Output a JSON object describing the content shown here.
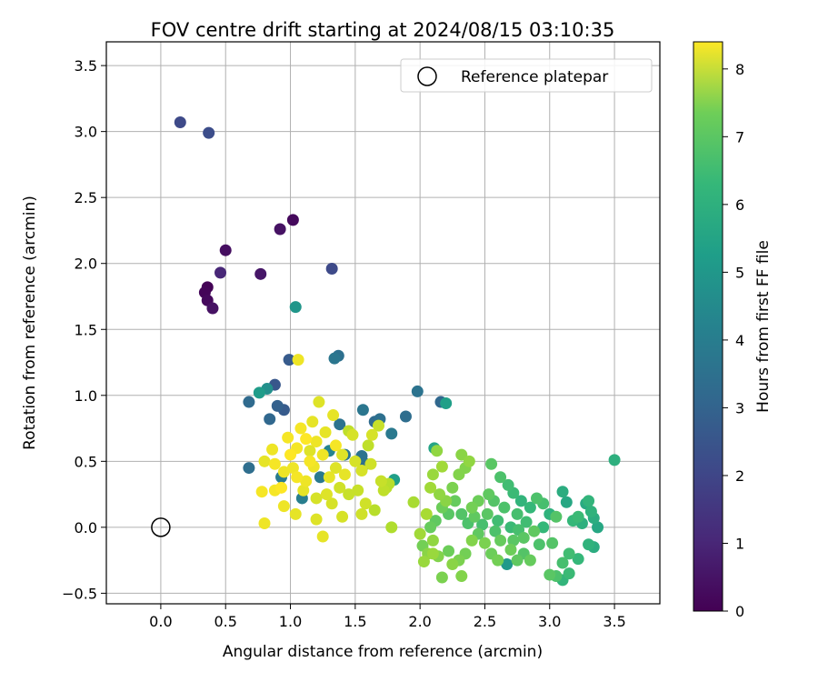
{
  "chart_data": {
    "type": "scatter",
    "title": "FOV centre drift starting at 2024/08/15 03:10:35",
    "xlabel": "Angular distance from reference (arcmin)",
    "ylabel": "Rotation from reference (arcmin)",
    "xlim": [
      -0.42,
      3.85
    ],
    "ylim": [
      -0.58,
      3.68
    ],
    "xticks": [
      "0.0",
      "0.5",
      "1.0",
      "1.5",
      "2.0",
      "2.5",
      "3.0",
      "3.5"
    ],
    "xtick_values": [
      0,
      0.5,
      1.0,
      1.5,
      2.0,
      2.5,
      3.0,
      3.5
    ],
    "yticks": [
      "−0.5",
      "0.0",
      "0.5",
      "1.0",
      "1.5",
      "2.0",
      "2.5",
      "3.0",
      "3.5"
    ],
    "ytick_values": [
      -0.5,
      0,
      0.5,
      1.0,
      1.5,
      2.0,
      2.5,
      3.0,
      3.5
    ],
    "grid": true,
    "legend": {
      "placement": "top-right",
      "entries": [
        "Reference platepar"
      ]
    },
    "reference_point": {
      "x": 0.0,
      "y": 0.0,
      "label": "Reference platepar"
    },
    "colorbar": {
      "label": "Hours from first FF file",
      "colormap": "viridis",
      "range": [
        0,
        8.4
      ],
      "ticks": [
        "0",
        "1",
        "2",
        "3",
        "4",
        "5",
        "6",
        "7",
        "8"
      ],
      "tick_values": [
        0,
        1,
        2,
        3,
        4,
        5,
        6,
        7,
        8
      ]
    },
    "series": [
      {
        "color_by": "hours",
        "points": [
          {
            "x": 0.36,
            "y": 1.82,
            "h": 0.05
          },
          {
            "x": 0.34,
            "y": 1.78,
            "h": 0.1
          },
          {
            "x": 0.36,
            "y": 1.72,
            "h": 0.2
          },
          {
            "x": 0.4,
            "y": 1.66,
            "h": 0.4
          },
          {
            "x": 0.5,
            "y": 2.1,
            "h": 0.3
          },
          {
            "x": 0.46,
            "y": 1.93,
            "h": 0.9
          },
          {
            "x": 0.77,
            "y": 1.92,
            "h": 0.5
          },
          {
            "x": 0.92,
            "y": 2.26,
            "h": 0.4
          },
          {
            "x": 1.02,
            "y": 2.33,
            "h": 0.2
          },
          {
            "x": 0.15,
            "y": 3.07,
            "h": 1.9
          },
          {
            "x": 0.37,
            "y": 2.99,
            "h": 2.0
          },
          {
            "x": 1.32,
            "y": 1.96,
            "h": 1.9
          },
          {
            "x": 0.99,
            "y": 1.27,
            "h": 2.4
          },
          {
            "x": 0.88,
            "y": 1.08,
            "h": 2.3
          },
          {
            "x": 0.9,
            "y": 0.92,
            "h": 2.6
          },
          {
            "x": 0.95,
            "y": 0.89,
            "h": 2.4
          },
          {
            "x": 0.84,
            "y": 0.82,
            "h": 2.8
          },
          {
            "x": 0.68,
            "y": 0.95,
            "h": 2.9
          },
          {
            "x": 0.68,
            "y": 0.45,
            "h": 3.0
          },
          {
            "x": 1.34,
            "y": 1.28,
            "h": 3.3
          },
          {
            "x": 1.37,
            "y": 1.3,
            "h": 3.1
          },
          {
            "x": 1.04,
            "y": 1.67,
            "h": 4.4
          },
          {
            "x": 0.76,
            "y": 1.02,
            "h": 4.6
          },
          {
            "x": 0.82,
            "y": 1.05,
            "h": 4.2
          },
          {
            "x": 1.09,
            "y": 0.22,
            "h": 3.6
          },
          {
            "x": 1.23,
            "y": 0.38,
            "h": 3.4
          },
          {
            "x": 1.38,
            "y": 0.78,
            "h": 3.2
          },
          {
            "x": 1.42,
            "y": 0.55,
            "h": 3.3
          },
          {
            "x": 1.55,
            "y": 0.54,
            "h": 3.2
          },
          {
            "x": 1.56,
            "y": 0.89,
            "h": 3.3
          },
          {
            "x": 1.58,
            "y": 0.48,
            "h": 3.0
          },
          {
            "x": 1.65,
            "y": 0.8,
            "h": 2.9
          },
          {
            "x": 1.69,
            "y": 0.82,
            "h": 3.1
          },
          {
            "x": 1.78,
            "y": 0.71,
            "h": 3.4
          },
          {
            "x": 1.89,
            "y": 0.84,
            "h": 3.0
          },
          {
            "x": 1.98,
            "y": 1.03,
            "h": 3.2
          },
          {
            "x": 2.16,
            "y": 0.95,
            "h": 2.8
          },
          {
            "x": 2.2,
            "y": 0.94,
            "h": 4.7
          },
          {
            "x": 2.11,
            "y": 0.6,
            "h": 4.9
          },
          {
            "x": 1.8,
            "y": 0.36,
            "h": 4.7
          },
          {
            "x": 3.5,
            "y": 0.51,
            "h": 5.3
          },
          {
            "x": 2.67,
            "y": -0.28,
            "h": 4.5
          },
          {
            "x": 0.93,
            "y": 0.38,
            "h": 3.5
          },
          {
            "x": 1.3,
            "y": 0.58,
            "h": 3.8
          },
          {
            "x": 2.55,
            "y": 0.48,
            "h": 6.2
          },
          {
            "x": 2.62,
            "y": 0.38,
            "h": 6.0
          },
          {
            "x": 2.68,
            "y": 0.32,
            "h": 5.8
          },
          {
            "x": 2.72,
            "y": 0.26,
            "h": 5.7
          },
          {
            "x": 2.78,
            "y": 0.2,
            "h": 5.5
          },
          {
            "x": 2.85,
            "y": 0.15,
            "h": 5.6
          },
          {
            "x": 2.9,
            "y": 0.22,
            "h": 6.0
          },
          {
            "x": 2.95,
            "y": 0.18,
            "h": 5.9
          },
          {
            "x": 3.0,
            "y": 0.1,
            "h": 5.4
          },
          {
            "x": 3.05,
            "y": 0.08,
            "h": 6.1
          },
          {
            "x": 3.1,
            "y": 0.27,
            "h": 5.2
          },
          {
            "x": 3.13,
            "y": 0.19,
            "h": 5.0
          },
          {
            "x": 3.18,
            "y": 0.05,
            "h": 5.6
          },
          {
            "x": 3.22,
            "y": 0.08,
            "h": 5.7
          },
          {
            "x": 3.25,
            "y": 0.03,
            "h": 5.3
          },
          {
            "x": 3.28,
            "y": 0.18,
            "h": 5.1
          },
          {
            "x": 3.3,
            "y": 0.2,
            "h": 5.5
          },
          {
            "x": 3.32,
            "y": 0.12,
            "h": 5.4
          },
          {
            "x": 3.34,
            "y": 0.07,
            "h": 5.2
          },
          {
            "x": 3.37,
            "y": 0.0,
            "h": 5.0
          },
          {
            "x": 3.3,
            "y": -0.13,
            "h": 5.4
          },
          {
            "x": 3.34,
            "y": -0.15,
            "h": 5.2
          },
          {
            "x": 3.22,
            "y": -0.24,
            "h": 5.6
          },
          {
            "x": 3.15,
            "y": -0.2,
            "h": 5.8
          },
          {
            "x": 3.1,
            "y": -0.27,
            "h": 5.9
          },
          {
            "x": 3.15,
            "y": -0.35,
            "h": 5.7
          },
          {
            "x": 3.1,
            "y": -0.4,
            "h": 5.5
          },
          {
            "x": 3.05,
            "y": -0.37,
            "h": 6.0
          },
          {
            "x": 3.0,
            "y": -0.36,
            "h": 6.2
          },
          {
            "x": 3.02,
            "y": -0.12,
            "h": 6.1
          },
          {
            "x": 2.92,
            "y": -0.13,
            "h": 6.0
          },
          {
            "x": 2.88,
            "y": -0.03,
            "h": 6.3
          },
          {
            "x": 2.82,
            "y": 0.04,
            "h": 5.8
          },
          {
            "x": 2.76,
            "y": -0.02,
            "h": 5.9
          },
          {
            "x": 2.72,
            "y": -0.1,
            "h": 6.2
          },
          {
            "x": 2.8,
            "y": -0.2,
            "h": 6.1
          },
          {
            "x": 2.85,
            "y": -0.25,
            "h": 6.4
          },
          {
            "x": 2.75,
            "y": -0.25,
            "h": 6.3
          },
          {
            "x": 2.7,
            "y": -0.17,
            "h": 6.5
          },
          {
            "x": 2.62,
            "y": -0.1,
            "h": 6.4
          },
          {
            "x": 2.6,
            "y": -0.25,
            "h": 6.6
          },
          {
            "x": 2.55,
            "y": -0.2,
            "h": 6.5
          },
          {
            "x": 2.5,
            "y": -0.12,
            "h": 6.7
          },
          {
            "x": 2.45,
            "y": -0.05,
            "h": 6.3
          },
          {
            "x": 2.4,
            "y": -0.1,
            "h": 6.8
          },
          {
            "x": 2.35,
            "y": -0.2,
            "h": 6.6
          },
          {
            "x": 2.3,
            "y": -0.25,
            "h": 6.7
          },
          {
            "x": 2.32,
            "y": -0.37,
            "h": 6.8
          },
          {
            "x": 2.25,
            "y": -0.28,
            "h": 6.9
          },
          {
            "x": 2.22,
            "y": -0.18,
            "h": 6.5
          },
          {
            "x": 2.17,
            "y": -0.38,
            "h": 6.7
          },
          {
            "x": 2.14,
            "y": -0.22,
            "h": 6.8
          },
          {
            "x": 2.1,
            "y": -0.1,
            "h": 7.0
          },
          {
            "x": 2.06,
            "y": -0.2,
            "h": 6.9
          },
          {
            "x": 2.03,
            "y": -0.26,
            "h": 7.1
          },
          {
            "x": 2.02,
            "y": -0.14,
            "h": 6.6
          },
          {
            "x": 2.08,
            "y": 0.0,
            "h": 6.4
          },
          {
            "x": 2.12,
            "y": 0.05,
            "h": 6.3
          },
          {
            "x": 2.17,
            "y": 0.15,
            "h": 6.5
          },
          {
            "x": 2.22,
            "y": 0.1,
            "h": 6.2
          },
          {
            "x": 2.27,
            "y": 0.2,
            "h": 6.4
          },
          {
            "x": 2.32,
            "y": 0.1,
            "h": 6.1
          },
          {
            "x": 2.37,
            "y": 0.03,
            "h": 6.0
          },
          {
            "x": 2.42,
            "y": 0.08,
            "h": 6.3
          },
          {
            "x": 2.48,
            "y": 0.02,
            "h": 5.9
          },
          {
            "x": 2.52,
            "y": 0.1,
            "h": 6.2
          },
          {
            "x": 2.57,
            "y": 0.2,
            "h": 6.1
          },
          {
            "x": 2.6,
            "y": 0.05,
            "h": 5.8
          },
          {
            "x": 2.65,
            "y": 0.15,
            "h": 6.0
          },
          {
            "x": 2.7,
            "y": 0.0,
            "h": 5.7
          },
          {
            "x": 2.75,
            "y": 0.1,
            "h": 5.9
          },
          {
            "x": 2.8,
            "y": -0.08,
            "h": 6.2
          },
          {
            "x": 2.95,
            "y": 0.0,
            "h": 5.6
          },
          {
            "x": 2.58,
            "y": -0.03,
            "h": 6.0
          },
          {
            "x": 2.53,
            "y": 0.25,
            "h": 6.3
          },
          {
            "x": 2.45,
            "y": 0.2,
            "h": 6.5
          },
          {
            "x": 2.4,
            "y": 0.15,
            "h": 6.6
          },
          {
            "x": 2.35,
            "y": 0.45,
            "h": 6.8
          },
          {
            "x": 2.32,
            "y": 0.55,
            "h": 6.9
          },
          {
            "x": 2.38,
            "y": 0.5,
            "h": 7.0
          },
          {
            "x": 2.3,
            "y": 0.4,
            "h": 6.8
          },
          {
            "x": 2.25,
            "y": 0.3,
            "h": 6.7
          },
          {
            "x": 2.2,
            "y": 0.2,
            "h": 6.9
          },
          {
            "x": 2.15,
            "y": 0.25,
            "h": 7.0
          },
          {
            "x": 2.1,
            "y": 0.4,
            "h": 7.1
          },
          {
            "x": 2.13,
            "y": 0.58,
            "h": 7.0
          },
          {
            "x": 2.17,
            "y": 0.46,
            "h": 7.2
          },
          {
            "x": 2.08,
            "y": 0.3,
            "h": 7.2
          },
          {
            "x": 1.95,
            "y": 0.19,
            "h": 7.3
          },
          {
            "x": 2.05,
            "y": 0.1,
            "h": 7.3
          },
          {
            "x": 2.0,
            "y": -0.05,
            "h": 7.2
          },
          {
            "x": 2.1,
            "y": -0.2,
            "h": 7.1
          },
          {
            "x": 1.78,
            "y": 0.0,
            "h": 7.4
          },
          {
            "x": 1.72,
            "y": 0.28,
            "h": 7.6
          },
          {
            "x": 1.76,
            "y": 0.33,
            "h": 7.5
          },
          {
            "x": 1.7,
            "y": 0.35,
            "h": 7.7
          },
          {
            "x": 1.65,
            "y": 0.13,
            "h": 7.5
          },
          {
            "x": 1.6,
            "y": 0.62,
            "h": 7.6
          },
          {
            "x": 1.62,
            "y": 0.48,
            "h": 7.8
          },
          {
            "x": 1.55,
            "y": 0.43,
            "h": 7.9
          },
          {
            "x": 1.52,
            "y": 0.28,
            "h": 7.7
          },
          {
            "x": 1.55,
            "y": 0.1,
            "h": 7.8
          },
          {
            "x": 1.5,
            "y": 0.5,
            "h": 7.9
          },
          {
            "x": 1.45,
            "y": 0.73,
            "h": 7.6
          },
          {
            "x": 1.48,
            "y": 0.7,
            "h": 7.9
          },
          {
            "x": 1.4,
            "y": 0.55,
            "h": 8.0
          },
          {
            "x": 1.35,
            "y": 0.45,
            "h": 8.0
          },
          {
            "x": 1.38,
            "y": 0.3,
            "h": 7.8
          },
          {
            "x": 1.32,
            "y": 0.18,
            "h": 7.9
          },
          {
            "x": 1.3,
            "y": 0.38,
            "h": 8.1
          },
          {
            "x": 1.27,
            "y": 0.72,
            "h": 8.1
          },
          {
            "x": 1.25,
            "y": 0.55,
            "h": 8.2
          },
          {
            "x": 1.22,
            "y": 0.95,
            "h": 8.0
          },
          {
            "x": 1.2,
            "y": 0.65,
            "h": 8.2
          },
          {
            "x": 1.17,
            "y": 0.8,
            "h": 8.1
          },
          {
            "x": 1.15,
            "y": 0.5,
            "h": 8.3
          },
          {
            "x": 1.12,
            "y": 0.35,
            "h": 8.2
          },
          {
            "x": 1.1,
            "y": 0.28,
            "h": 8.1
          },
          {
            "x": 1.08,
            "y": 0.75,
            "h": 8.3
          },
          {
            "x": 1.05,
            "y": 0.6,
            "h": 8.3
          },
          {
            "x": 1.02,
            "y": 0.45,
            "h": 8.2
          },
          {
            "x": 1.0,
            "y": 0.55,
            "h": 8.4
          },
          {
            "x": 0.98,
            "y": 0.68,
            "h": 8.3
          },
          {
            "x": 0.95,
            "y": 0.42,
            "h": 8.2
          },
          {
            "x": 0.93,
            "y": 0.3,
            "h": 8.4
          },
          {
            "x": 0.88,
            "y": 0.48,
            "h": 8.3
          },
          {
            "x": 0.86,
            "y": 0.59,
            "h": 8.2
          },
          {
            "x": 0.8,
            "y": 0.5,
            "h": 8.1
          },
          {
            "x": 0.78,
            "y": 0.27,
            "h": 8.3
          },
          {
            "x": 0.8,
            "y": 0.03,
            "h": 8.2
          },
          {
            "x": 0.88,
            "y": 0.28,
            "h": 8.3
          },
          {
            "x": 0.95,
            "y": 0.16,
            "h": 8.2
          },
          {
            "x": 1.04,
            "y": 0.1,
            "h": 8.1
          },
          {
            "x": 1.2,
            "y": 0.06,
            "h": 8.0
          },
          {
            "x": 1.25,
            "y": -0.07,
            "h": 8.1
          },
          {
            "x": 1.4,
            "y": 0.08,
            "h": 7.9
          },
          {
            "x": 1.45,
            "y": 0.25,
            "h": 7.7
          },
          {
            "x": 1.33,
            "y": 0.85,
            "h": 8.1
          },
          {
            "x": 1.06,
            "y": 1.27,
            "h": 8.2
          },
          {
            "x": 1.15,
            "y": 0.58,
            "h": 8.0
          },
          {
            "x": 1.2,
            "y": 0.22,
            "h": 7.9
          },
          {
            "x": 1.28,
            "y": 0.25,
            "h": 8.0
          },
          {
            "x": 1.35,
            "y": 0.62,
            "h": 8.3
          },
          {
            "x": 1.42,
            "y": 0.4,
            "h": 8.1
          },
          {
            "x": 1.58,
            "y": 0.18,
            "h": 7.8
          },
          {
            "x": 1.63,
            "y": 0.7,
            "h": 7.9
          },
          {
            "x": 1.68,
            "y": 0.77,
            "h": 7.7
          },
          {
            "x": 1.74,
            "y": 0.3,
            "h": 7.5
          },
          {
            "x": 1.05,
            "y": 0.38,
            "h": 8.3
          },
          {
            "x": 1.12,
            "y": 0.67,
            "h": 8.4
          },
          {
            "x": 1.18,
            "y": 0.46,
            "h": 8.2
          }
        ]
      }
    ]
  }
}
